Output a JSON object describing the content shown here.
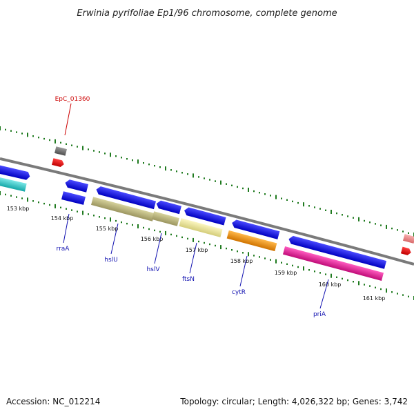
{
  "title": "Erwinia pyrifoliae Ep1/96 chromosome, complete genome",
  "footer": {
    "accession": "Accession: NC_012214",
    "topology": "Topology: circular; Length: 4,026,322 bp; Genes: 3,742"
  },
  "kbp_ticks": [
    "153 kbp",
    "154 kbp",
    "155 kbp",
    "156 kbp",
    "157 kbp",
    "158 kbp",
    "159 kbp",
    "160 kbp",
    "161 kbp"
  ],
  "gene_labels": [
    "rraA",
    "hslU",
    "hslV",
    "ftsN",
    "cytR",
    "priA"
  ],
  "marker_label": "EpC_01360",
  "colors": {
    "backbone": "#7a7a7a",
    "tick": "#1f7a1f",
    "blue": "#0000ee",
    "cyan": "#22c8c8",
    "olive": "#bdb87c",
    "pale_yellow": "#f2ec9c",
    "orange": "#ff9a14",
    "magenta": "#f020a0",
    "red": "#ee0000",
    "gray": "#707070",
    "pink": "#f08a8a",
    "blue_label": "#1010b0",
    "red_label": "#cc0000"
  }
}
